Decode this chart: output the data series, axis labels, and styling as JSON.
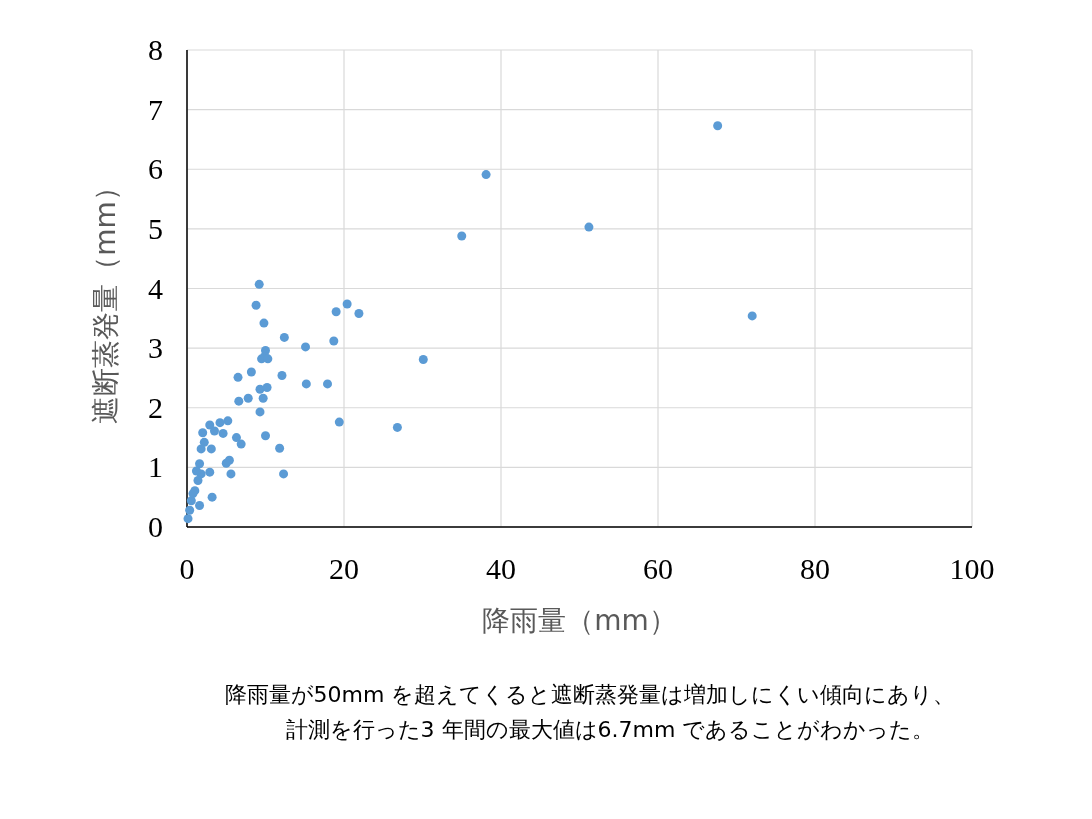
{
  "chart_data": {
    "type": "scatter",
    "xlabel": "降雨量（mm）",
    "ylabel": "遮断蒸発量（mm）",
    "xlim": [
      0,
      100
    ],
    "xticks": [
      0,
      20,
      40,
      60,
      80,
      100
    ],
    "ylim": [
      0,
      8
    ],
    "yticks": [
      0,
      1,
      2,
      3,
      4,
      5,
      6,
      7,
      8
    ],
    "grid": true,
    "marker": "circle",
    "series": [
      {
        "color": "#5b9bd5",
        "x": [
          9.2,
          8.8,
          9.8,
          19.0,
          20.4,
          21.9,
          12.4,
          15.1,
          18.7,
          10.0,
          9.9,
          9.5,
          10.3,
          30.1,
          6.5,
          8.2,
          12.1,
          15.2,
          17.9,
          9.3,
          10.2,
          6.6,
          7.8,
          9.7,
          9.3,
          19.4,
          26.8,
          5.2,
          4.2,
          2.9,
          2.0,
          3.5,
          4.6,
          6.3,
          6.9,
          10.0,
          2.2,
          1.8,
          3.1,
          11.8,
          5.4,
          5.0,
          1.6,
          2.9,
          5.6,
          12.3,
          1.8,
          1.4,
          1.0,
          3.2,
          1.6,
          0.55,
          0.34,
          0.13,
          0.76,
          1.2,
          35.0,
          38.1,
          51.2,
          67.6,
          72.0
        ],
        "values": [
          4.07,
          3.72,
          3.42,
          3.61,
          3.74,
          3.58,
          3.18,
          3.02,
          3.12,
          2.96,
          2.86,
          2.82,
          2.82,
          2.81,
          2.51,
          2.6,
          2.54,
          2.4,
          2.4,
          2.31,
          2.34,
          2.11,
          2.16,
          2.16,
          1.93,
          1.76,
          1.67,
          1.78,
          1.75,
          1.71,
          1.58,
          1.61,
          1.57,
          1.5,
          1.39,
          1.53,
          1.42,
          1.31,
          1.31,
          1.32,
          1.12,
          1.07,
          1.06,
          0.92,
          0.89,
          0.89,
          0.89,
          0.78,
          0.61,
          0.5,
          0.36,
          0.44,
          0.28,
          0.14,
          0.56,
          0.94,
          4.88,
          5.91,
          5.03,
          6.73,
          3.54
        ]
      }
    ],
    "annotations": [
      "降雨量が50mm を超えてくると遮断蒸発量は増加しにくい傾向にあり、",
      "計測を行った3 年間の最大値は6.7mm であることがわかった。"
    ]
  }
}
